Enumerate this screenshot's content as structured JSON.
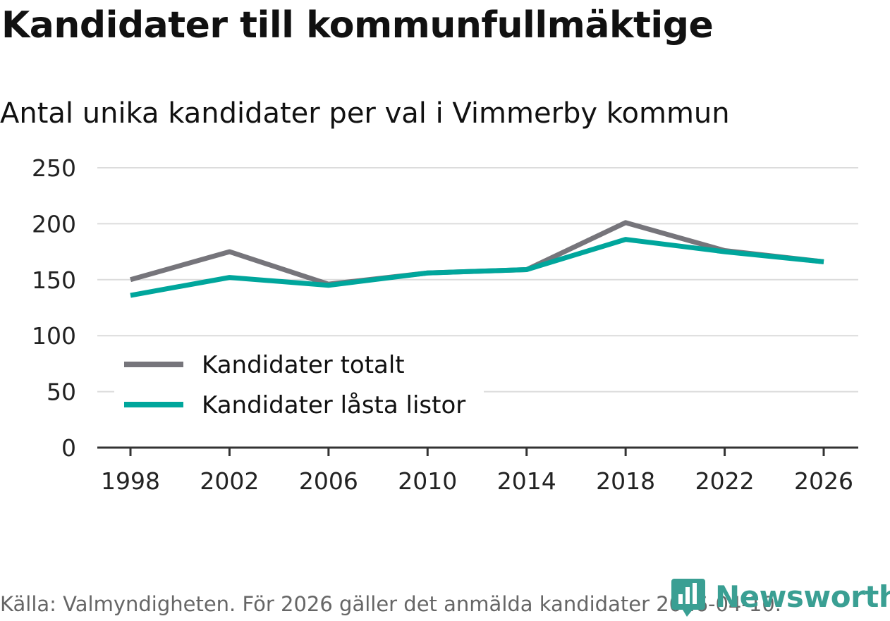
{
  "header": {
    "title": "Kandidater till kommunfullmäktige",
    "subtitle": "Antal unika kandidater per val i Vimmerby kommun"
  },
  "footer": {
    "source": "Källa: Valmyndigheten. För 2026 gäller det anmälda kandidater 2026-04-10.",
    "logo_text": "Newsworthy"
  },
  "colors": {
    "total": "#76757b",
    "locked": "#00a69c",
    "grid": "#dcdcdc",
    "axis": "#333333"
  },
  "chart_data": {
    "type": "line",
    "title": "Antal unika kandidater per val i Vimmerby kommun",
    "xlabel": "",
    "ylabel": "",
    "x": [
      1998,
      2002,
      2006,
      2010,
      2014,
      2018,
      2022,
      2026
    ],
    "ylim": [
      0,
      250
    ],
    "yticks": [
      0,
      50,
      100,
      150,
      200,
      250
    ],
    "grid": true,
    "legend_position": "bottom-left",
    "series": [
      {
        "name": "Kandidater totalt",
        "color": "#76757b",
        "values": [
          150,
          175,
          146,
          156,
          159,
          201,
          176,
          166
        ]
      },
      {
        "name": "Kandidater låsta listor",
        "color": "#00a69c",
        "values": [
          136,
          152,
          145,
          156,
          159,
          186,
          175,
          166
        ]
      }
    ]
  }
}
